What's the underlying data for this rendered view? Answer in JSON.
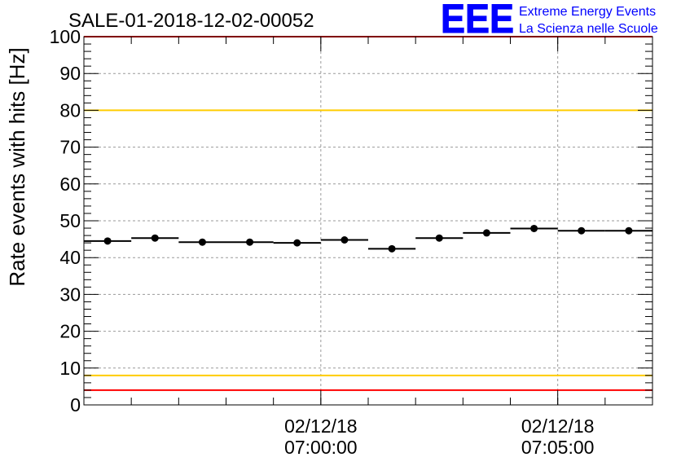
{
  "chart_data": {
    "type": "scatter",
    "title": "SALE-01-2018-12-02-00052",
    "ylabel": "Rate events with hits [Hz]",
    "xlabel": "",
    "ylim": [
      0,
      100
    ],
    "yticks": [
      0,
      10,
      20,
      30,
      40,
      50,
      60,
      70,
      80,
      90,
      100
    ],
    "xlim": [
      "06:55:00",
      "07:07:00"
    ],
    "x_tick_labels": [
      {
        "x": "07:00:00",
        "date": "02/12/18",
        "time": "07:00:00"
      },
      {
        "x": "07:05:00",
        "date": "02/12/18",
        "time": "07:05:00"
      }
    ],
    "grid": true,
    "series": [
      {
        "x": [
          "06:55:30",
          "06:56:30",
          "06:57:30",
          "06:58:30",
          "06:59:30",
          "07:00:30",
          "07:01:30",
          "07:02:30",
          "07:03:30",
          "07:04:30",
          "07:05:30",
          "07:06:30"
        ],
        "values": [
          44.5,
          45.3,
          44.2,
          44.2,
          44.0,
          44.8,
          42.4,
          45.3,
          46.7,
          47.9,
          47.3,
          47.3
        ],
        "bin_width_minutes": 1,
        "color": "#000000"
      }
    ],
    "reference_lines": [
      {
        "y": 100,
        "color": "#ff0000"
      },
      {
        "y": 80,
        "color": "#ffcc00"
      },
      {
        "y": 8,
        "color": "#ffcc00"
      },
      {
        "y": 4,
        "color": "#ff0000"
      }
    ]
  },
  "logo": {
    "mark": "EEE",
    "line1": "Extreme Energy Events",
    "line2": "La Scienza nelle Scuole",
    "color": "#0000ff"
  }
}
